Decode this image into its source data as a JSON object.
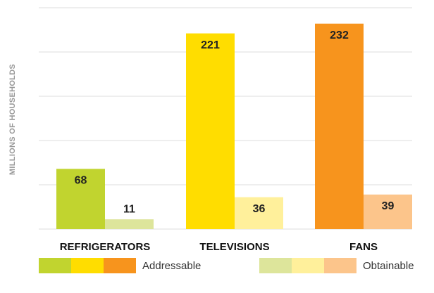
{
  "chart_data": {
    "type": "bar",
    "y_label": "MILLIONS OF HOUSEHOLDS",
    "categories": [
      "REFRIGERATORS",
      "TELEVISIONS",
      "FANS"
    ],
    "series": [
      {
        "name": "Addressable",
        "colors": [
          "#c1d42f",
          "#ffdd00",
          "#f7941d"
        ],
        "values": [
          68,
          221,
          232
        ]
      },
      {
        "name": "Obtainable",
        "colors": [
          "#dde59b",
          "#fff09b",
          "#fcc58b"
        ],
        "values": [
          11,
          36,
          39
        ]
      }
    ],
    "ylim": [
      0,
      250
    ],
    "yticks": [
      0,
      50,
      100,
      150,
      200,
      250
    ],
    "grid": true
  }
}
